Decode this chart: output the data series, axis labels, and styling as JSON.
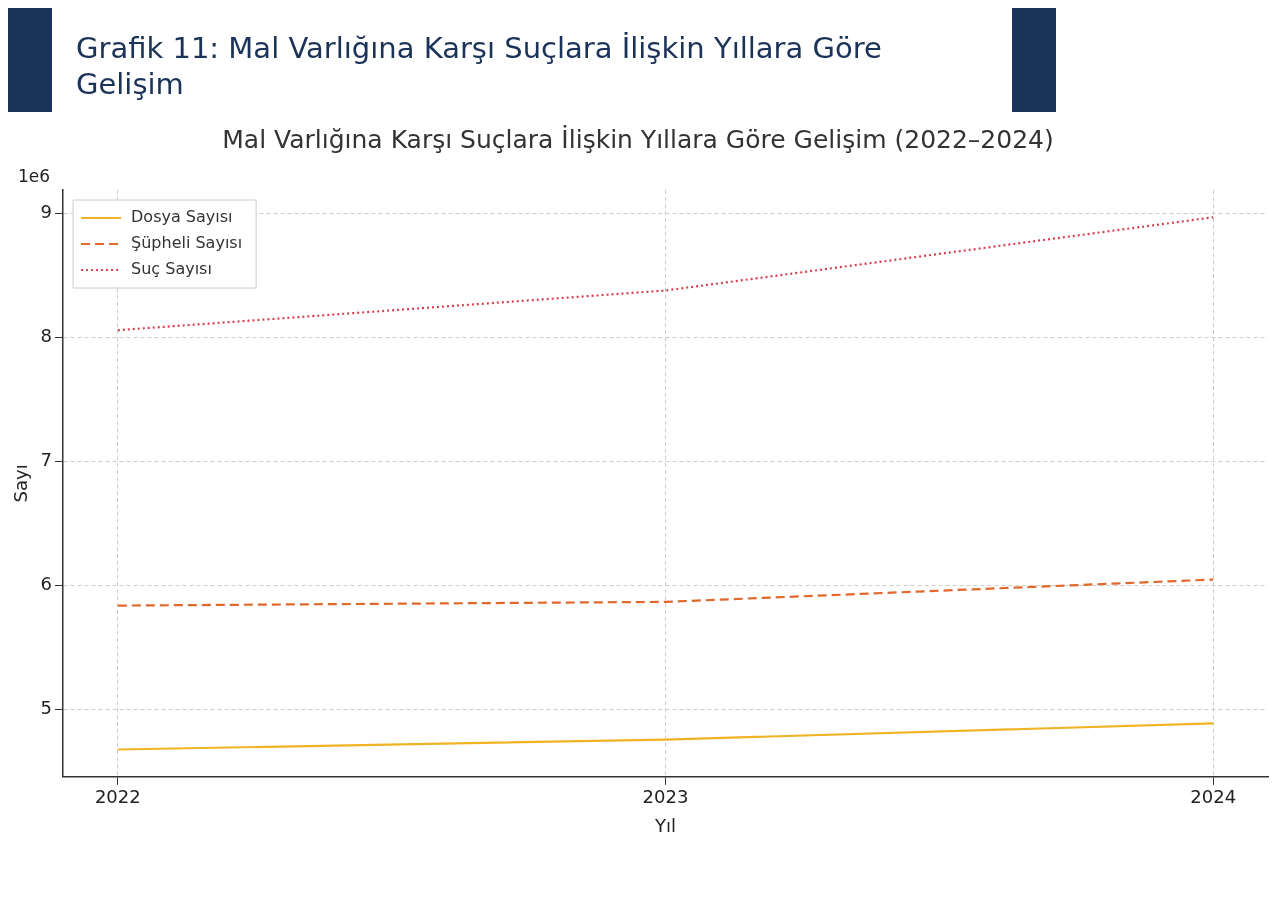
{
  "chart_data": {
    "type": "line",
    "title": "Grafik 11: Mal Varlığına Karşı Suçlara İlişkin Yıllara Göre Gelişim",
    "subtitle": "Mal Varlığına Karşı Suçlara İlişkin Yıllara Göre Gelişim (2022–2024)",
    "xlabel": "Yıl",
    "ylabel": "Sayı",
    "annotations": [
      "1e6"
    ],
    "x": [
      2022,
      2023,
      2024
    ],
    "xlim": [
      2021.9,
      2024.1
    ],
    "xticks": [
      2022,
      2023,
      2024
    ],
    "ylim": [
      4.46,
      9.19
    ],
    "yticks": [
      5,
      6,
      7,
      8,
      9
    ],
    "grid": true,
    "legend": "top left",
    "marker": "none",
    "series": [
      {
        "name": "Dosya Sayısı",
        "color": "#f0b323",
        "line_style": "solid",
        "values": [
          4.68,
          4.76,
          4.89
        ]
      },
      {
        "name": "Şüpheli Sayısı",
        "color": "#e0682a",
        "line_style": "dashed",
        "values": [
          5.84,
          5.87,
          6.05
        ]
      },
      {
        "name": "Suç Sayısı",
        "color": "#d6404e",
        "line_style": "dotted",
        "values": [
          8.06,
          8.38,
          8.97
        ]
      }
    ]
  }
}
